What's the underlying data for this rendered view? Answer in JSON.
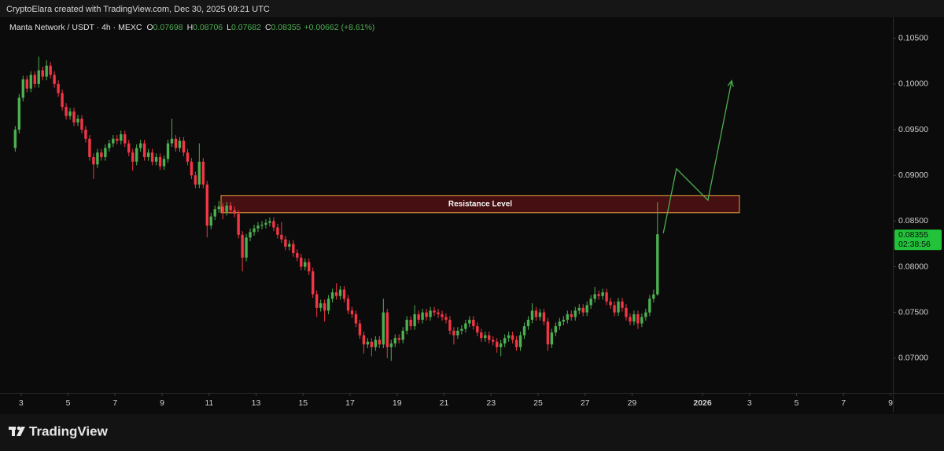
{
  "header": {
    "credit": "CryptoElara created with TradingView.com, Dec 30, 2025 09:21 UTC"
  },
  "footer": {
    "logo": "TradingView"
  },
  "chart_data": {
    "type": "candlestick",
    "symbol": "Manta Network / USDT · 4h · MEXC",
    "ohlc_header": [
      {
        "label": "O",
        "value": "0.07698"
      },
      {
        "label": "H",
        "value": "0.08706"
      },
      {
        "label": "L",
        "value": "0.07682"
      },
      {
        "label": "C",
        "value": "0.08355"
      }
    ],
    "change": "+0.00662 (+8.61%)",
    "up_color": "#4caf50",
    "down_color": "#f23645",
    "xlim": [
      2.37,
      40.1
    ],
    "ylim": [
      0.0662,
      0.1073
    ],
    "xticks": [
      3,
      5,
      7,
      9,
      11,
      13,
      15,
      17,
      19,
      21,
      23,
      25,
      27,
      29,
      {
        "value": 32,
        "label": "2026"
      },
      {
        "value": 34,
        "label": "3"
      },
      {
        "value": 36,
        "label": "5"
      },
      {
        "value": 38,
        "label": "7"
      },
      {
        "value": 40,
        "label": "9"
      }
    ],
    "yticks": [
      {
        "value": 0.07,
        "label": "0.07000"
      },
      {
        "value": 0.075,
        "label": "0.07500"
      },
      {
        "value": 0.08,
        "label": "0.08000"
      },
      {
        "value": 0.085,
        "label": "0.08500"
      },
      {
        "value": 0.09,
        "label": "0.09000"
      },
      {
        "value": 0.095,
        "label": "0.09500"
      },
      {
        "value": 0.1,
        "label": "0.10000"
      },
      {
        "value": 0.105,
        "label": "0.10500"
      }
    ],
    "last_price": {
      "label": "0.08355",
      "countdown": "02:38:56",
      "color": "#22c33a"
    },
    "resistance": {
      "label": "Resistance Level",
      "x": [
        11.51,
        33.57
      ],
      "y": [
        0.08591,
        0.0878
      ],
      "color": "#e8a33d"
    },
    "projection": {
      "color": "#4caf50",
      "x": [
        30.33,
        30.89,
        32.23,
        33.24
      ],
      "y": [
        0.08367,
        0.09072,
        0.08728,
        0.10036
      ]
    },
    "values": [
      [
        0.093,
        0.0954,
        0.0926,
        0.095
      ],
      [
        0.095,
        0.0989,
        0.0946,
        0.0985
      ],
      [
        0.0985,
        0.1009,
        0.0981,
        0.1005
      ],
      [
        0.1005,
        0.1009,
        0.0991,
        0.0995
      ],
      [
        0.0995,
        0.1014,
        0.0991,
        0.101
      ],
      [
        0.101,
        0.1014,
        0.0996,
        0.1
      ],
      [
        0.1,
        0.103,
        0.0996,
        0.1015
      ],
      [
        0.1015,
        0.1019,
        0.1004,
        0.1008
      ],
      [
        0.1008,
        0.1026,
        0.1004,
        0.102
      ],
      [
        0.102,
        0.1024,
        0.1006,
        0.101
      ],
      [
        0.101,
        0.1014,
        0.0996,
        0.1
      ],
      [
        0.1,
        0.1004,
        0.0986,
        0.099
      ],
      [
        0.099,
        0.0994,
        0.0971,
        0.0975
      ],
      [
        0.0975,
        0.0979,
        0.0961,
        0.0965
      ],
      [
        0.0965,
        0.0974,
        0.0961,
        0.097
      ],
      [
        0.097,
        0.0974,
        0.0954,
        0.0958
      ],
      [
        0.0958,
        0.0966,
        0.0954,
        0.0962
      ],
      [
        0.0962,
        0.0966,
        0.0946,
        0.095
      ],
      [
        0.095,
        0.0954,
        0.0936,
        0.094
      ],
      [
        0.094,
        0.0944,
        0.0916,
        0.092
      ],
      [
        0.092,
        0.0924,
        0.0896,
        0.0912
      ],
      [
        0.0912,
        0.0929,
        0.0908,
        0.0925
      ],
      [
        0.0925,
        0.0929,
        0.0916,
        0.092
      ],
      [
        0.092,
        0.0934,
        0.0916,
        0.093
      ],
      [
        0.093,
        0.0939,
        0.0926,
        0.0935
      ],
      [
        0.0935,
        0.0944,
        0.0931,
        0.094
      ],
      [
        0.094,
        0.0944,
        0.0934,
        0.0938
      ],
      [
        0.0938,
        0.0949,
        0.0934,
        0.0945
      ],
      [
        0.0945,
        0.0949,
        0.0931,
        0.0935
      ],
      [
        0.0935,
        0.0939,
        0.0921,
        0.0925
      ],
      [
        0.0925,
        0.0929,
        0.0905,
        0.0915
      ],
      [
        0.0915,
        0.0934,
        0.0911,
        0.093
      ],
      [
        0.093,
        0.0939,
        0.0926,
        0.0935
      ],
      [
        0.0935,
        0.0939,
        0.0916,
        0.092
      ],
      [
        0.092,
        0.0929,
        0.0916,
        0.0925
      ],
      [
        0.0925,
        0.0929,
        0.0911,
        0.0915
      ],
      [
        0.0915,
        0.0924,
        0.0911,
        0.092
      ],
      [
        0.092,
        0.0924,
        0.0906,
        0.091
      ],
      [
        0.091,
        0.0922,
        0.0906,
        0.0918
      ],
      [
        0.0918,
        0.0939,
        0.0914,
        0.0935
      ],
      [
        0.0935,
        0.0962,
        0.0931,
        0.094
      ],
      [
        0.094,
        0.0944,
        0.0926,
        0.093
      ],
      [
        0.093,
        0.0942,
        0.0926,
        0.0938
      ],
      [
        0.0938,
        0.0942,
        0.0921,
        0.0925
      ],
      [
        0.0925,
        0.0929,
        0.0911,
        0.0915
      ],
      [
        0.0915,
        0.0919,
        0.0896,
        0.09
      ],
      [
        0.09,
        0.0904,
        0.0886,
        0.089
      ],
      [
        0.089,
        0.0935,
        0.0886,
        0.0915
      ],
      [
        0.0915,
        0.0919,
        0.0886,
        0.089
      ],
      [
        0.089,
        0.0894,
        0.0832,
        0.0845
      ],
      [
        0.0845,
        0.0859,
        0.0841,
        0.0855
      ],
      [
        0.0855,
        0.0867,
        0.0851,
        0.0863
      ],
      [
        0.0863,
        0.0872,
        0.0859,
        0.0866
      ],
      [
        0.0866,
        0.087,
        0.0852,
        0.086
      ],
      [
        0.086,
        0.0871,
        0.0856,
        0.0867
      ],
      [
        0.0867,
        0.0871,
        0.0858,
        0.0862
      ],
      [
        0.0862,
        0.0866,
        0.0854,
        0.0858
      ],
      [
        0.0858,
        0.0862,
        0.0831,
        0.0835
      ],
      [
        0.0835,
        0.0839,
        0.0795,
        0.081
      ],
      [
        0.081,
        0.0836,
        0.0806,
        0.0832
      ],
      [
        0.0832,
        0.0842,
        0.0828,
        0.0838
      ],
      [
        0.0838,
        0.0846,
        0.0834,
        0.0842
      ],
      [
        0.0842,
        0.0849,
        0.0838,
        0.0845
      ],
      [
        0.0845,
        0.085,
        0.0841,
        0.0846
      ],
      [
        0.0846,
        0.0852,
        0.0842,
        0.0848
      ],
      [
        0.0848,
        0.0854,
        0.0844,
        0.085
      ],
      [
        0.085,
        0.0854,
        0.0839,
        0.0843
      ],
      [
        0.0843,
        0.0847,
        0.0831,
        0.0835
      ],
      [
        0.0835,
        0.0849,
        0.0826,
        0.083
      ],
      [
        0.083,
        0.0834,
        0.0818,
        0.0822
      ],
      [
        0.0822,
        0.0829,
        0.0818,
        0.0825
      ],
      [
        0.0825,
        0.0829,
        0.0811,
        0.0815
      ],
      [
        0.0815,
        0.0819,
        0.0806,
        0.081
      ],
      [
        0.081,
        0.0814,
        0.0796,
        0.08
      ],
      [
        0.08,
        0.0809,
        0.0796,
        0.0805
      ],
      [
        0.0805,
        0.0809,
        0.0791,
        0.0795
      ],
      [
        0.0795,
        0.0799,
        0.0766,
        0.077
      ],
      [
        0.077,
        0.0774,
        0.0745,
        0.0755
      ],
      [
        0.0755,
        0.0764,
        0.0751,
        0.076
      ],
      [
        0.076,
        0.0764,
        0.074,
        0.0752
      ],
      [
        0.0752,
        0.0769,
        0.0748,
        0.0765
      ],
      [
        0.0765,
        0.0776,
        0.0761,
        0.0772
      ],
      [
        0.0772,
        0.0782,
        0.0764,
        0.0768
      ],
      [
        0.0768,
        0.0779,
        0.0764,
        0.0775
      ],
      [
        0.0775,
        0.0779,
        0.0761,
        0.0765
      ],
      [
        0.0765,
        0.0769,
        0.0748,
        0.0752
      ],
      [
        0.0752,
        0.0756,
        0.0744,
        0.0748
      ],
      [
        0.0748,
        0.0752,
        0.0734,
        0.0738
      ],
      [
        0.0738,
        0.0742,
        0.0721,
        0.0725
      ],
      [
        0.0725,
        0.0729,
        0.0705,
        0.0715
      ],
      [
        0.0715,
        0.0722,
        0.0711,
        0.0718
      ],
      [
        0.0718,
        0.0722,
        0.0702,
        0.0712
      ],
      [
        0.0712,
        0.0724,
        0.0708,
        0.072
      ],
      [
        0.072,
        0.0724,
        0.0711,
        0.0715
      ],
      [
        0.0715,
        0.0765,
        0.0711,
        0.075
      ],
      [
        0.075,
        0.0754,
        0.07,
        0.0712
      ],
      [
        0.0712,
        0.072,
        0.0697,
        0.0716
      ],
      [
        0.0716,
        0.0726,
        0.0712,
        0.0722
      ],
      [
        0.0722,
        0.0726,
        0.0716,
        0.072
      ],
      [
        0.072,
        0.0734,
        0.0716,
        0.073
      ],
      [
        0.073,
        0.0746,
        0.0726,
        0.0742
      ],
      [
        0.0742,
        0.0746,
        0.0731,
        0.0735
      ],
      [
        0.0735,
        0.0758,
        0.0731,
        0.0748
      ],
      [
        0.0748,
        0.0752,
        0.0738,
        0.0742
      ],
      [
        0.0742,
        0.0754,
        0.0738,
        0.075
      ],
      [
        0.075,
        0.0754,
        0.0741,
        0.0745
      ],
      [
        0.0745,
        0.0756,
        0.0741,
        0.0752
      ],
      [
        0.0752,
        0.0756,
        0.0746,
        0.075
      ],
      [
        0.075,
        0.0754,
        0.0744,
        0.0748
      ],
      [
        0.0748,
        0.0752,
        0.0741,
        0.0745
      ],
      [
        0.0745,
        0.0749,
        0.0738,
        0.0742
      ],
      [
        0.0742,
        0.0746,
        0.0726,
        0.073
      ],
      [
        0.073,
        0.0734,
        0.0715,
        0.0725
      ],
      [
        0.0725,
        0.0734,
        0.0721,
        0.073
      ],
      [
        0.073,
        0.0736,
        0.0726,
        0.0732
      ],
      [
        0.0732,
        0.0742,
        0.0728,
        0.0738
      ],
      [
        0.0738,
        0.0746,
        0.0734,
        0.0742
      ],
      [
        0.0742,
        0.0746,
        0.0731,
        0.0735
      ],
      [
        0.0735,
        0.0739,
        0.0724,
        0.0728
      ],
      [
        0.0728,
        0.0732,
        0.0718,
        0.0722
      ],
      [
        0.0722,
        0.0729,
        0.0718,
        0.0725
      ],
      [
        0.0725,
        0.0729,
        0.0716,
        0.072
      ],
      [
        0.072,
        0.0724,
        0.0714,
        0.0718
      ],
      [
        0.0718,
        0.0722,
        0.0706,
        0.0712
      ],
      [
        0.0712,
        0.072,
        0.0702,
        0.0716
      ],
      [
        0.0716,
        0.0726,
        0.0712,
        0.0722
      ],
      [
        0.0722,
        0.0729,
        0.0718,
        0.0725
      ],
      [
        0.0725,
        0.0729,
        0.0716,
        0.072
      ],
      [
        0.072,
        0.0724,
        0.0708,
        0.0712
      ],
      [
        0.0712,
        0.0729,
        0.0708,
        0.0725
      ],
      [
        0.0725,
        0.0739,
        0.0721,
        0.0735
      ],
      [
        0.0735,
        0.0746,
        0.0731,
        0.0742
      ],
      [
        0.0742,
        0.076,
        0.0738,
        0.0752
      ],
      [
        0.0752,
        0.0756,
        0.0741,
        0.0745
      ],
      [
        0.0745,
        0.0754,
        0.0741,
        0.075
      ],
      [
        0.075,
        0.0754,
        0.0736,
        0.074
      ],
      [
        0.074,
        0.0744,
        0.0708,
        0.0715
      ],
      [
        0.0715,
        0.0732,
        0.0711,
        0.0728
      ],
      [
        0.0728,
        0.0739,
        0.0724,
        0.0735
      ],
      [
        0.0735,
        0.0744,
        0.0731,
        0.074
      ],
      [
        0.074,
        0.0746,
        0.0736,
        0.0742
      ],
      [
        0.0742,
        0.0752,
        0.0738,
        0.0748
      ],
      [
        0.0748,
        0.0752,
        0.0741,
        0.0745
      ],
      [
        0.0745,
        0.0756,
        0.0741,
        0.0752
      ],
      [
        0.0752,
        0.0759,
        0.0748,
        0.0755
      ],
      [
        0.0755,
        0.0759,
        0.0746,
        0.075
      ],
      [
        0.075,
        0.0762,
        0.0746,
        0.0758
      ],
      [
        0.0758,
        0.0769,
        0.0754,
        0.0765
      ],
      [
        0.0765,
        0.0778,
        0.0761,
        0.077
      ],
      [
        0.077,
        0.0774,
        0.0764,
        0.0768
      ],
      [
        0.0768,
        0.0776,
        0.0764,
        0.0772
      ],
      [
        0.0772,
        0.0776,
        0.0758,
        0.0762
      ],
      [
        0.0762,
        0.0766,
        0.0754,
        0.0758
      ],
      [
        0.0758,
        0.0762,
        0.0746,
        0.075
      ],
      [
        0.075,
        0.0766,
        0.0746,
        0.0762
      ],
      [
        0.0762,
        0.0766,
        0.0751,
        0.0755
      ],
      [
        0.0755,
        0.0759,
        0.0741,
        0.0745
      ],
      [
        0.0745,
        0.0749,
        0.0736,
        0.074
      ],
      [
        0.074,
        0.0752,
        0.0736,
        0.0748
      ],
      [
        0.0748,
        0.0752,
        0.0732,
        0.0738
      ],
      [
        0.0738,
        0.0749,
        0.0734,
        0.0745
      ],
      [
        0.0745,
        0.0754,
        0.0741,
        0.075
      ],
      [
        0.075,
        0.0769,
        0.0746,
        0.0765
      ],
      [
        0.0765,
        0.0775,
        0.0761,
        0.07698
      ],
      [
        0.07698,
        0.08706,
        0.07682,
        0.08355
      ]
    ]
  }
}
